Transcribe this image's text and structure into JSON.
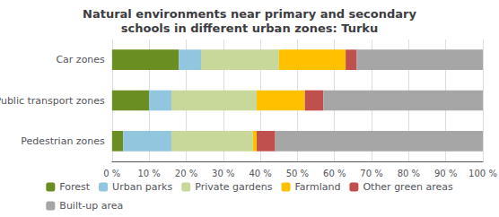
{
  "chart_data": {
    "type": "bar",
    "orientation": "horizontal",
    "stacked": true,
    "title": "Natural environments near primary and secondary\nschools in different urban zones: Turku",
    "categories": [
      "Pedestrian zones",
      "Public transport zones",
      "Car zones"
    ],
    "series": [
      {
        "name": "Forest",
        "color": "#6b8e23",
        "values": [
          3,
          10,
          18
        ]
      },
      {
        "name": "Urban parks",
        "color": "#92c5de",
        "values": [
          13,
          6,
          6
        ]
      },
      {
        "name": "Private gardens",
        "color": "#c8d89a",
        "values": [
          22,
          23,
          21
        ]
      },
      {
        "name": "Farmland",
        "color": "#ffc000",
        "values": [
          1,
          13,
          18
        ]
      },
      {
        "name": "Other green areas",
        "color": "#c0504d",
        "values": [
          5,
          5,
          3
        ]
      },
      {
        "name": "Built-up area",
        "color": "#a6a6a6",
        "values": [
          56,
          43,
          34
        ]
      }
    ],
    "xlim": [
      0,
      100
    ],
    "xticks": [
      {
        "value": 0,
        "label": "0 %"
      },
      {
        "value": 10,
        "label": "10 %"
      },
      {
        "value": 20,
        "label": "20 %"
      },
      {
        "value": 30,
        "label": "30 %"
      },
      {
        "value": 40,
        "label": "40 %"
      },
      {
        "value": 50,
        "label": "50 %"
      },
      {
        "value": 60,
        "label": "60 %"
      },
      {
        "value": 70,
        "label": "70 %"
      },
      {
        "value": 80,
        "label": "80 %"
      },
      {
        "value": 90,
        "label": "90 %"
      },
      {
        "value": 100,
        "label": "100 %"
      }
    ],
    "grid": true,
    "legend": "bottom"
  }
}
